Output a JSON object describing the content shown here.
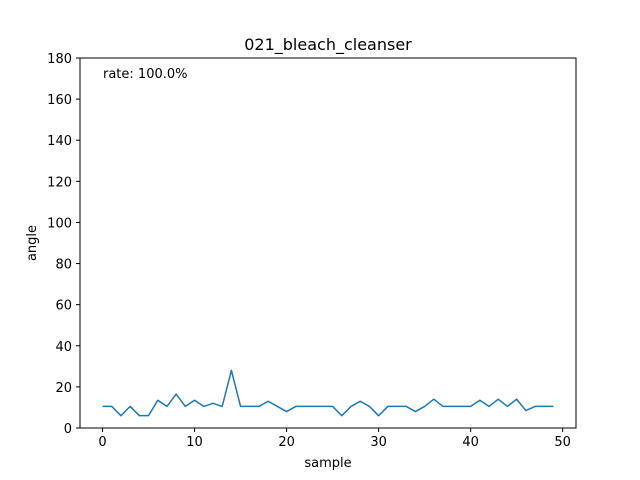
{
  "chart_data": {
    "type": "line",
    "title": "021_bleach_cleanser",
    "xlabel": "sample",
    "ylabel": "angle",
    "annotation": "rate: 100.0%",
    "xlim": [
      -2.45,
      51.45
    ],
    "ylim": [
      0,
      180
    ],
    "xticks": [
      0,
      10,
      20,
      30,
      40,
      50
    ],
    "yticks": [
      0,
      20,
      40,
      60,
      80,
      100,
      120,
      140,
      160,
      180
    ],
    "grid": false,
    "line_color": "#1f77b4",
    "x": [
      0,
      1,
      2,
      3,
      4,
      5,
      6,
      7,
      8,
      9,
      10,
      11,
      12,
      13,
      14,
      15,
      16,
      17,
      18,
      19,
      20,
      21,
      22,
      23,
      24,
      25,
      26,
      27,
      28,
      29,
      30,
      31,
      32,
      33,
      34,
      35,
      36,
      37,
      38,
      39,
      40,
      41,
      42,
      43,
      44,
      45,
      46,
      47,
      48,
      49
    ],
    "y": [
      10.5,
      10.5,
      6,
      10.5,
      6,
      6,
      13.5,
      10.5,
      16.5,
      10.5,
      13.5,
      10.5,
      12,
      10.5,
      28,
      10.5,
      10.5,
      10.5,
      13,
      10.5,
      8,
      10.5,
      10.5,
      10.5,
      10.5,
      10.5,
      6,
      10.5,
      13,
      10.5,
      6,
      10.5,
      10.5,
      10.5,
      8,
      10.5,
      14,
      10.5,
      10.5,
      10.5,
      10.5,
      13.5,
      10.5,
      14,
      10.5,
      14,
      8.5,
      10.5,
      10.5,
      10.5
    ]
  }
}
